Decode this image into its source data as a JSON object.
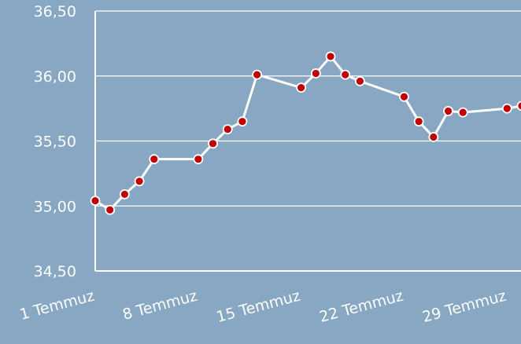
{
  "chart_data": {
    "type": "line",
    "x": [
      1,
      2,
      3,
      4,
      5,
      8,
      9,
      10,
      11,
      12,
      15,
      16,
      17,
      18,
      19,
      22,
      23,
      24,
      25,
      26,
      29,
      30
    ],
    "series": [
      {
        "color": "#ffffff",
        "marker_color": "#c00000",
        "values": [
          35.04,
          34.97,
          35.09,
          35.19,
          35.36,
          35.36,
          35.48,
          35.59,
          35.65,
          36.01,
          35.91,
          36.02,
          36.15,
          36.01,
          35.96,
          35.84,
          35.65,
          35.53,
          35.73,
          35.72,
          35.75,
          35.77
        ]
      }
    ],
    "xlim": [
      1,
      30
    ],
    "xticks": [
      {
        "value": 1,
        "label": "1 Temmuz"
      },
      {
        "value": 8,
        "label": "8 Temmuz"
      },
      {
        "value": 15,
        "label": "15 Temmuz"
      },
      {
        "value": 22,
        "label": "22 Temmuz"
      },
      {
        "value": 29,
        "label": "29 Temmuz"
      }
    ],
    "ylim": [
      34.5,
      36.5
    ],
    "yticks": [
      {
        "value": 34.5,
        "label": "34,50"
      },
      {
        "value": 35,
        "label": "35,00"
      },
      {
        "value": 35.5,
        "label": "35,50"
      },
      {
        "value": 36,
        "label": "36,00"
      },
      {
        "value": 36.5,
        "label": "36,50"
      }
    ],
    "grid": true
  }
}
